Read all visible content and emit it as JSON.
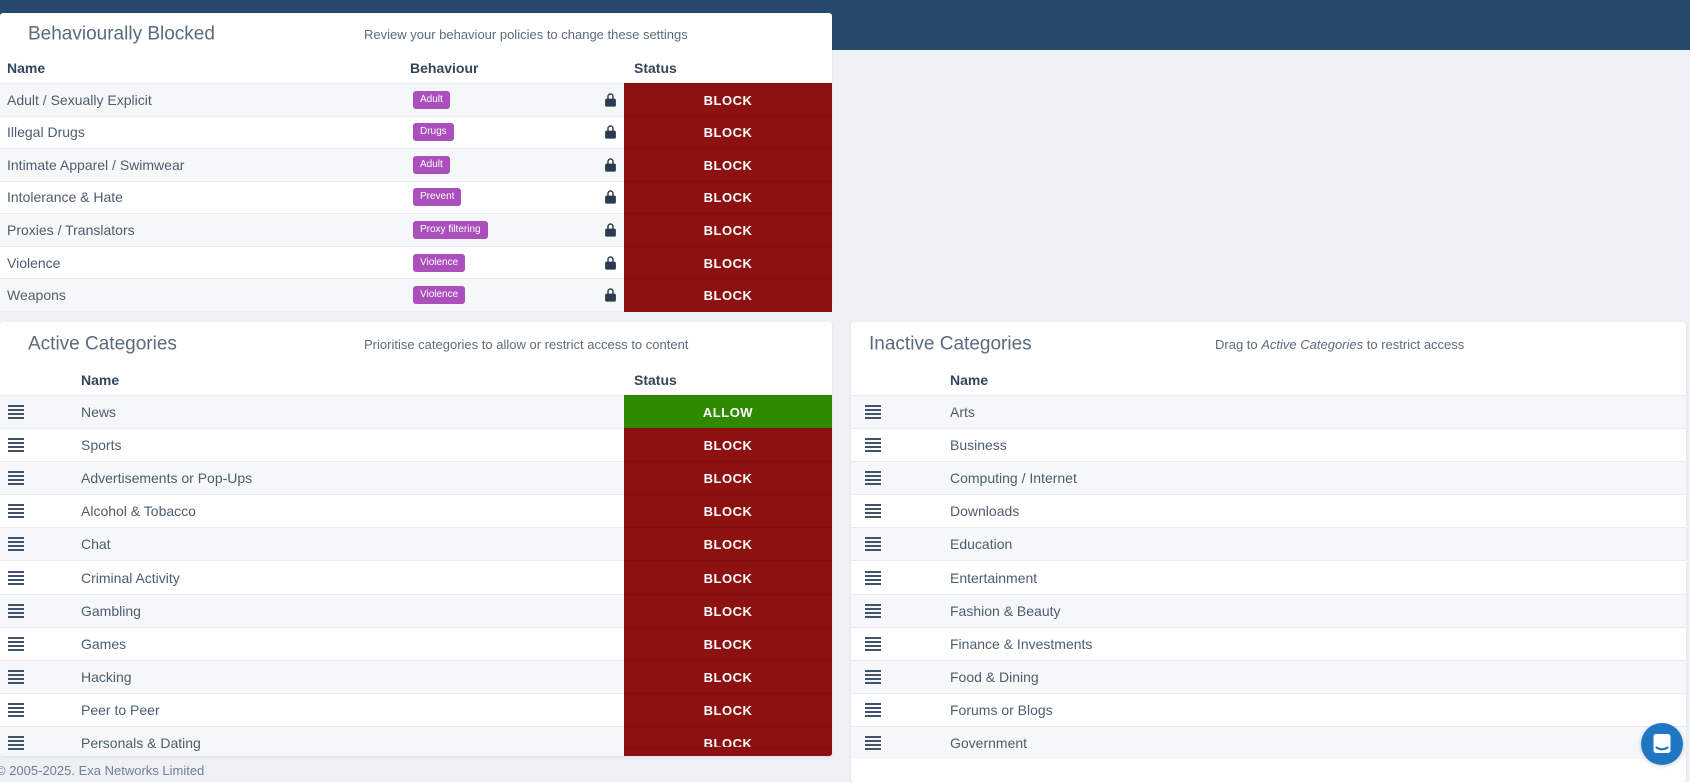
{
  "page": {
    "footer_text": "© 2005-2025. Exa Networks Limited",
    "background_color": "#edf0f4"
  },
  "topbar": {
    "color": "#26486a"
  },
  "colors": {
    "block": "#8e1111",
    "allow": "#2f8a00",
    "behaviour_badge": "#ab4fbd",
    "chat_launcher": "#1f76c2"
  },
  "icons": {
    "lock": "lock-icon",
    "drag_handle": "drag-handle-icon",
    "chat": "chat-messenger-icon"
  },
  "behaviourally_blocked": {
    "title": "Behaviourally Blocked",
    "subtitle": "Review your behaviour policies to change these settings",
    "columns": {
      "name": "Name",
      "behaviour": "Behaviour",
      "status": "Status"
    },
    "rows": [
      {
        "name": "Adult / Sexually Explicit",
        "behaviour": "Adult",
        "status": "BLOCK"
      },
      {
        "name": "Illegal Drugs",
        "behaviour": "Drugs",
        "status": "BLOCK"
      },
      {
        "name": "Intimate Apparel / Swimwear",
        "behaviour": "Adult",
        "status": "BLOCK"
      },
      {
        "name": "Intolerance & Hate",
        "behaviour": "Prevent",
        "status": "BLOCK"
      },
      {
        "name": "Proxies / Translators",
        "behaviour": "Proxy filtering",
        "status": "BLOCK"
      },
      {
        "name": "Violence",
        "behaviour": "Violence",
        "status": "BLOCK"
      },
      {
        "name": "Weapons",
        "behaviour": "Violence",
        "status": "BLOCK"
      }
    ]
  },
  "active_categories": {
    "title": "Active Categories",
    "subtitle": "Prioritise categories to allow or restrict access to content",
    "columns": {
      "name": "Name",
      "status": "Status"
    },
    "rows": [
      {
        "name": "News",
        "status": "ALLOW"
      },
      {
        "name": "Sports",
        "status": "BLOCK"
      },
      {
        "name": "Advertisements or Pop-Ups",
        "status": "BLOCK"
      },
      {
        "name": "Alcohol & Tobacco",
        "status": "BLOCK"
      },
      {
        "name": "Chat",
        "status": "BLOCK"
      },
      {
        "name": "Criminal Activity",
        "status": "BLOCK"
      },
      {
        "name": "Gambling",
        "status": "BLOCK"
      },
      {
        "name": "Games",
        "status": "BLOCK"
      },
      {
        "name": "Hacking",
        "status": "BLOCK"
      },
      {
        "name": "Peer to Peer",
        "status": "BLOCK"
      },
      {
        "name": "Personals & Dating",
        "status": "BLOCK"
      }
    ]
  },
  "inactive_categories": {
    "title": "Inactive Categories",
    "subtitle_prefix": "Drag to ",
    "subtitle_em": "Active Categories",
    "subtitle_suffix": " to restrict access",
    "columns": {
      "name": "Name"
    },
    "rows": [
      {
        "name": "Arts"
      },
      {
        "name": "Business"
      },
      {
        "name": "Computing / Internet"
      },
      {
        "name": "Downloads"
      },
      {
        "name": "Education"
      },
      {
        "name": "Entertainment"
      },
      {
        "name": "Fashion & Beauty"
      },
      {
        "name": "Finance & Investments"
      },
      {
        "name": "Food & Dining"
      },
      {
        "name": "Forums or Blogs"
      },
      {
        "name": "Government"
      }
    ]
  }
}
